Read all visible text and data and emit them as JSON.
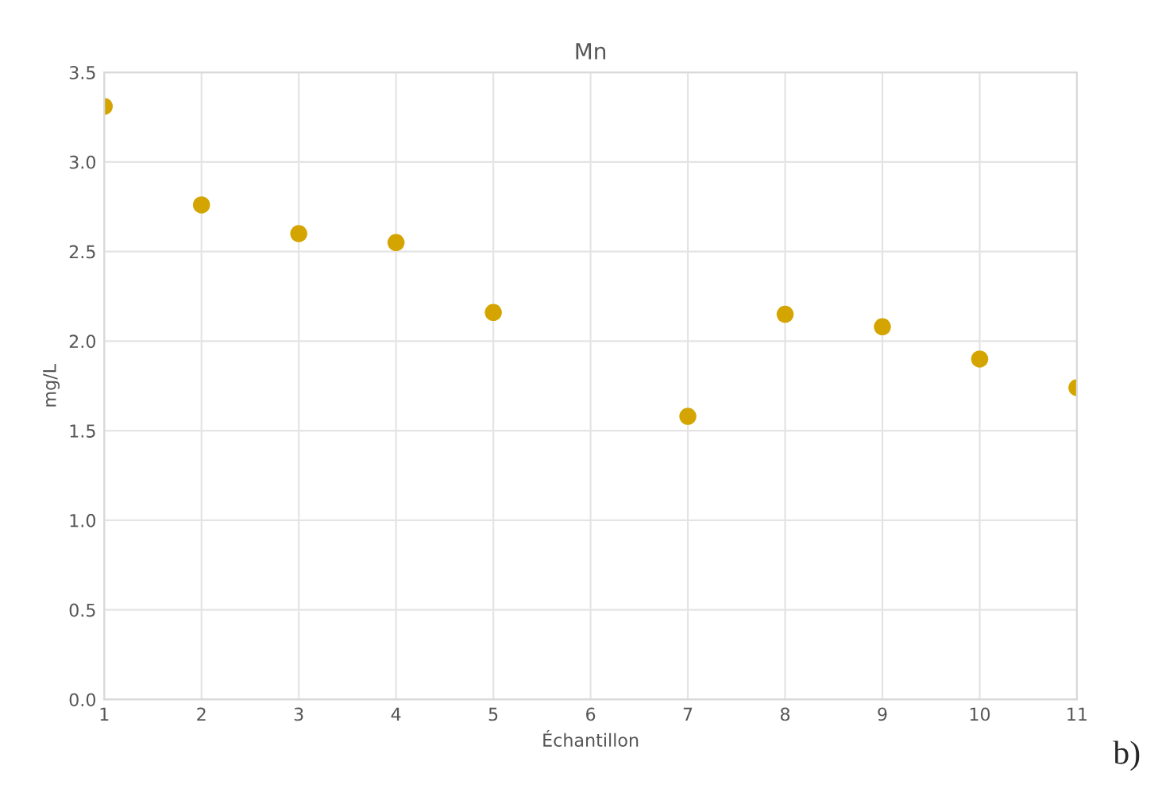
{
  "chart_data": {
    "type": "scatter",
    "title": "Mn",
    "xlabel": "Échantillon",
    "ylabel": "mg/L",
    "x": [
      1,
      2,
      3,
      4,
      5,
      7,
      8,
      9,
      10,
      11
    ],
    "series": [
      {
        "color": "#d4a500",
        "values": [
          3.31,
          2.76,
          2.6,
          2.55,
          2.16,
          1.58,
          2.15,
          2.08,
          1.9,
          1.74
        ]
      }
    ],
    "xlim": [
      1,
      11
    ],
    "xticks": [
      1,
      2,
      3,
      4,
      5,
      6,
      7,
      8,
      9,
      10,
      11
    ],
    "ylim": [
      0,
      3.5
    ],
    "yticks": [
      {
        "value": 0,
        "label": "0.0"
      },
      {
        "value": 0.5,
        "label": "0.5"
      },
      {
        "value": 1,
        "label": "1.0"
      },
      {
        "value": 1.5,
        "label": "1.5"
      },
      {
        "value": 2,
        "label": "2.0"
      },
      {
        "value": 2.5,
        "label": "2.5"
      },
      {
        "value": 3,
        "label": "3.0"
      },
      {
        "value": 3.5,
        "label": "3.5"
      }
    ],
    "grid": true,
    "marker": "circle",
    "annotations": [
      "b)"
    ]
  }
}
